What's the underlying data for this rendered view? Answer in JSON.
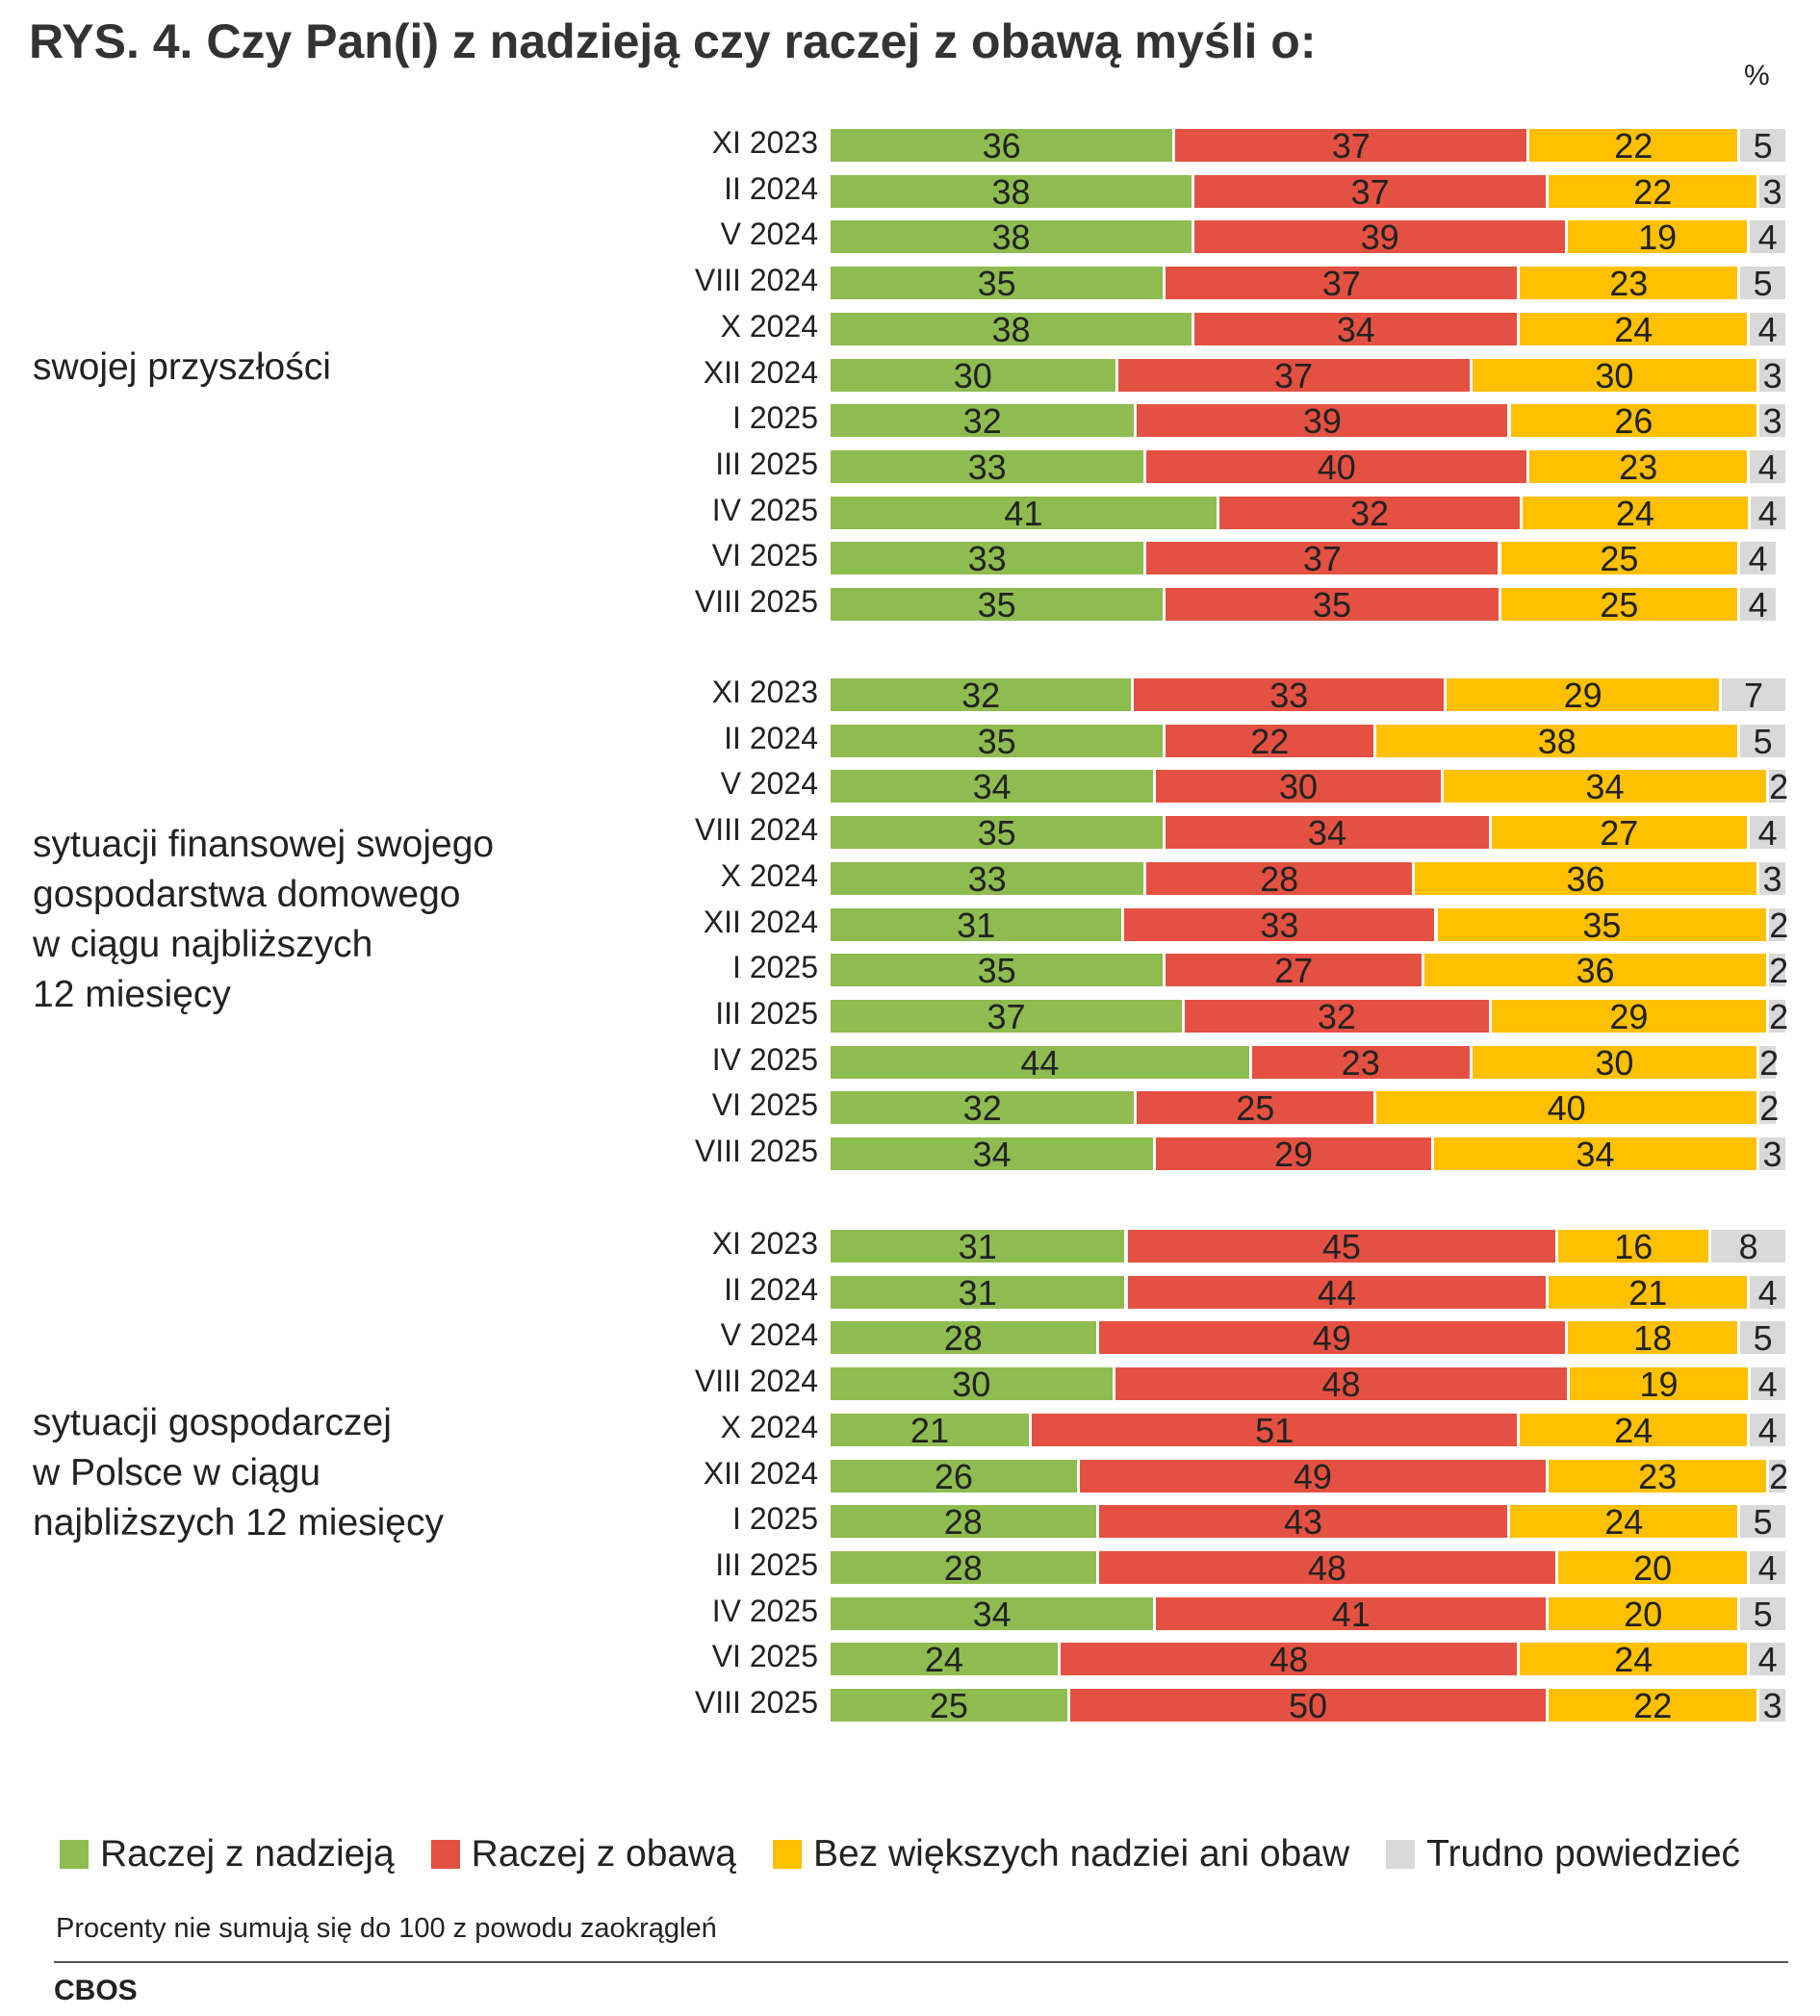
{
  "title": "RYS. 4. Czy Pan(i) z nadzieją czy raczej z obawą myśli o:",
  "unit": "%",
  "legend": [
    {
      "label": "Raczej z nadzieją",
      "color": "#8fbc50"
    },
    {
      "label": "Raczej z obawą",
      "color": "#e45142"
    },
    {
      "label": "Bez większych nadziei ani obaw",
      "color": "#ffc000"
    },
    {
      "label": "Trudno powiedzieć",
      "color": "#d9d9d9"
    }
  ],
  "note": "Procenty nie sumują się do 100 z powodu zaokrągleń",
  "source": "CBOS",
  "chart_data": {
    "type": "bar",
    "orientation": "horizontal",
    "stacked": true,
    "title": "RYS. 4. Czy Pan(i) z nadzieją czy raczej z obawą myśli o:",
    "unit": "%",
    "xlim": [
      0,
      100
    ],
    "series_names": [
      "Raczej z nadzieją",
      "Raczej z obawą",
      "Bez większych nadziei ani obaw",
      "Trudno powiedzieć"
    ],
    "series_colors": [
      "#8fbc50",
      "#e45142",
      "#ffc000",
      "#d9d9d9"
    ],
    "groups": [
      {
        "label": "swojej przyszłości",
        "categories": [
          "XI 2023",
          "II 2024",
          "V 2024",
          "VIII 2024",
          "X 2024",
          "XII 2024",
          "I 2025",
          "III 2025",
          "IV 2025",
          "VI 2025",
          "VIII 2025"
        ],
        "values": [
          [
            36,
            37,
            22,
            5
          ],
          [
            38,
            37,
            22,
            3
          ],
          [
            38,
            39,
            19,
            4
          ],
          [
            35,
            37,
            23,
            5
          ],
          [
            38,
            34,
            24,
            4
          ],
          [
            30,
            37,
            30,
            3
          ],
          [
            32,
            39,
            26,
            3
          ],
          [
            33,
            40,
            23,
            4
          ],
          [
            41,
            32,
            24,
            4
          ],
          [
            33,
            37,
            25,
            4
          ],
          [
            35,
            35,
            25,
            4
          ]
        ]
      },
      {
        "label": "sytuacji finansowej swojego\ngospodarstwa domowego\nw ciągu najbliższych\n12 miesięcy",
        "categories": [
          "XI 2023",
          "II 2024",
          "V 2024",
          "VIII 2024",
          "X 2024",
          "XII 2024",
          "I 2025",
          "III 2025",
          "IV 2025",
          "VI 2025",
          "VIII 2025"
        ],
        "values": [
          [
            32,
            33,
            29,
            7
          ],
          [
            35,
            22,
            38,
            5
          ],
          [
            34,
            30,
            34,
            2
          ],
          [
            35,
            34,
            27,
            4
          ],
          [
            33,
            28,
            36,
            3
          ],
          [
            31,
            33,
            35,
            2
          ],
          [
            35,
            27,
            36,
            2
          ],
          [
            37,
            32,
            29,
            2
          ],
          [
            44,
            23,
            30,
            2
          ],
          [
            32,
            25,
            40,
            2
          ],
          [
            34,
            29,
            34,
            3
          ]
        ]
      },
      {
        "label": "sytuacji gospodarczej\nw Polsce w ciągu\nnajbliższych 12 miesięcy",
        "categories": [
          "XI 2023",
          "II 2024",
          "V 2024",
          "VIII 2024",
          "X 2024",
          "XII 2024",
          "I 2025",
          "III 2025",
          "IV 2025",
          "VI 2025",
          "VIII 2025"
        ],
        "values": [
          [
            31,
            45,
            16,
            8
          ],
          [
            31,
            44,
            21,
            4
          ],
          [
            28,
            49,
            18,
            5
          ],
          [
            30,
            48,
            19,
            4
          ],
          [
            21,
            51,
            24,
            4
          ],
          [
            26,
            49,
            23,
            2
          ],
          [
            28,
            43,
            24,
            5
          ],
          [
            28,
            48,
            20,
            4
          ],
          [
            34,
            41,
            20,
            5
          ],
          [
            24,
            48,
            24,
            4
          ],
          [
            25,
            50,
            22,
            3
          ]
        ]
      }
    ]
  }
}
